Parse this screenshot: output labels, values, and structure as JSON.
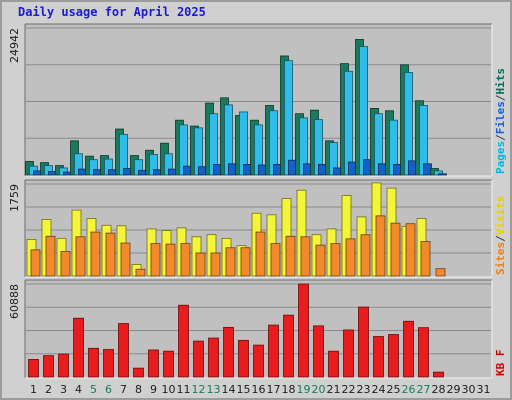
{
  "chart_data": {
    "type": "bar",
    "title": "Daily usage for April 2025",
    "categories": [
      "1",
      "2",
      "3",
      "4",
      "5",
      "6",
      "7",
      "8",
      "9",
      "10",
      "11",
      "12",
      "13",
      "14",
      "15",
      "16",
      "17",
      "18",
      "19",
      "20",
      "21",
      "22",
      "23",
      "24",
      "25",
      "26",
      "27",
      "28",
      "29",
      "30",
      "31"
    ],
    "weekend_days": [
      "5",
      "6",
      "12",
      "13",
      "19",
      "20",
      "26",
      "27"
    ],
    "panels": [
      {
        "id": "pages-files-hits",
        "ymax_label": "24942",
        "ymax": 24942,
        "axis_labels": [
          {
            "text": "Pages",
            "color": "#00b8e0"
          },
          {
            "text": "/",
            "color": "#404040"
          },
          {
            "text": "Files",
            "color": "#1060e0"
          },
          {
            "text": "/",
            "color": "#404040"
          },
          {
            "text": "Hits",
            "color": "#006f5a"
          }
        ],
        "series": [
          {
            "name": "Hits",
            "color": "#1a7a5e",
            "values": [
              2300,
              2100,
              1600,
              5800,
              3200,
              3300,
              7800,
              3300,
              4200,
              5400,
              9300,
              8300,
              12200,
              13100,
              10100,
              9300,
              11800,
              20200,
              10400,
              11000,
              5800,
              18900,
              23000,
              11300,
              10900,
              18700,
              12600,
              1100,
              0,
              0,
              0
            ]
          },
          {
            "name": "Files",
            "color": "#2fbce8",
            "values": [
              1500,
              1600,
              1200,
              3600,
              2600,
              2700,
              6900,
              2600,
              3500,
              3600,
              8500,
              8000,
              10400,
              11900,
              10700,
              8500,
              10900,
              19400,
              9700,
              9400,
              5500,
              17600,
              21800,
              10400,
              9300,
              17400,
              11800,
              700,
              0,
              0,
              0
            ]
          },
          {
            "name": "Pages",
            "color": "#1460c8",
            "values": [
              700,
              600,
              500,
              1000,
              900,
              900,
              1100,
              800,
              900,
              1000,
              1500,
              1400,
              1800,
              1900,
              1800,
              1700,
              1800,
              2500,
              1900,
              1800,
              1200,
              2200,
              2600,
              1900,
              1800,
              2400,
              1900,
              200,
              0,
              0,
              0
            ]
          }
        ]
      },
      {
        "id": "visits-sites",
        "ymax_label": "1759",
        "ymax": 1759,
        "axis_labels": [
          {
            "text": "Sites",
            "color": "#f08010"
          },
          {
            "text": "/",
            "color": "#404040"
          },
          {
            "text": "Visits",
            "color": "#e8d000"
          }
        ],
        "series": [
          {
            "name": "Visits",
            "color": "#f4f438",
            "values": [
              700,
              1080,
              720,
              1260,
              1100,
              970,
              960,
              220,
              900,
              870,
              920,
              750,
              790,
              720,
              580,
              1200,
              1170,
              1480,
              1640,
              790,
              900,
              1540,
              1130,
              1780,
              1680,
              950,
              1100,
              0,
              0,
              0,
              0
            ]
          },
          {
            "name": "Sites",
            "color": "#f08a2c",
            "values": [
              500,
              760,
              470,
              750,
              840,
              820,
              630,
              130,
              620,
              610,
              620,
              440,
              440,
              540,
              540,
              840,
              620,
              760,
              750,
              590,
              620,
              710,
              790,
              1150,
              1010,
              1000,
              660,
              140,
              0,
              0,
              0
            ]
          }
        ]
      },
      {
        "id": "kbytes",
        "ymax_label": "60888",
        "ymax": 60888,
        "axis_labels": [
          {
            "text": "KB F",
            "color": "#e00000"
          }
        ],
        "series": [
          {
            "name": "KB F",
            "color": "#e81c1c",
            "values": [
              11500,
              14000,
              15000,
              38500,
              18800,
              18000,
              35000,
              5800,
              17700,
              16900,
              47000,
              23500,
              25500,
              32500,
              24000,
              20900,
              34000,
              40500,
              60888,
              33500,
              16900,
              30800,
              45800,
              26500,
              27800,
              36500,
              32300,
              3200,
              0,
              0,
              0
            ]
          }
        ]
      }
    ]
  }
}
